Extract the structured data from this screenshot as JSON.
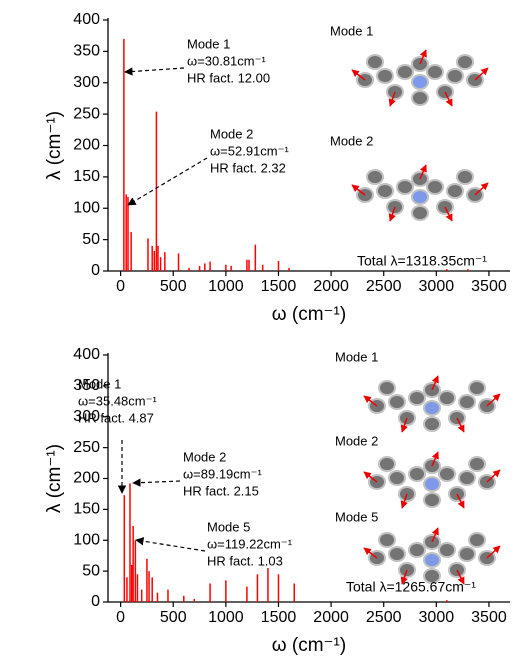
{
  "chart_data": [
    {
      "type": "stick",
      "color": "#ff0000",
      "x_label": "ω (cm⁻¹)",
      "y_label": "λ (cm⁻¹)",
      "x": [
        31,
        53,
        70,
        100,
        260,
        300,
        320,
        340,
        355,
        380,
        420,
        550,
        650,
        750,
        800,
        850,
        1000,
        1050,
        1200,
        1220,
        1280,
        1350,
        1500,
        1600,
        3100,
        3300
      ],
      "values": [
        370,
        122,
        118,
        62,
        52,
        40,
        32,
        254,
        40,
        22,
        30,
        28,
        5,
        8,
        12,
        15,
        10,
        8,
        18,
        18,
        42,
        10,
        16,
        5,
        3,
        3
      ],
      "xlim": [
        -120,
        3700
      ],
      "xticks": [
        0,
        500,
        1000,
        1500,
        2000,
        2500,
        3000,
        3500
      ],
      "ylim": [
        0,
        400
      ],
      "yticks": [
        0,
        50,
        100,
        150,
        200,
        250,
        300,
        350,
        400
      ],
      "annotations": [
        [
          "Mode 1",
          "ω=30.81cm⁻¹",
          "HR fact. 12.00"
        ],
        [
          "Mode 2",
          "ω=52.91cm⁻¹",
          "HR fact. 2.32"
        ]
      ],
      "total": "Total λ=1318.35cm⁻¹",
      "insets": [
        "Mode 1",
        "Mode 2"
      ]
    },
    {
      "type": "stick",
      "color": "#ff0000",
      "x_label": "ω (cm⁻¹)",
      "y_label": "λ (cm⁻¹)",
      "x": [
        35,
        60,
        89,
        105,
        119,
        140,
        160,
        200,
        250,
        270,
        300,
        350,
        450,
        600,
        700,
        850,
        1000,
        1200,
        1300,
        1400,
        1500,
        1650,
        3100
      ],
      "values": [
        173,
        40,
        192,
        60,
        123,
        100,
        45,
        20,
        70,
        50,
        40,
        15,
        20,
        10,
        5,
        30,
        35,
        25,
        45,
        55,
        45,
        30,
        3
      ],
      "xlim": [
        -120,
        3700
      ],
      "xticks": [
        0,
        500,
        1000,
        1500,
        2000,
        2500,
        3000,
        3500
      ],
      "ylim": [
        0,
        400
      ],
      "yticks": [
        0,
        50,
        100,
        150,
        200,
        250,
        300,
        350,
        400
      ],
      "annotations": [
        [
          "Mode 1",
          "ω=35.48cm⁻¹",
          "HR fact. 4.87"
        ],
        [
          "Mode 2",
          "ω=89.19cm⁻¹",
          "HR fact. 2.15"
        ],
        [
          "Mode 5",
          "ω=119.22cm⁻¹",
          "HR fact. 1.03"
        ]
      ],
      "total": "Total λ=1265.67cm⁻¹",
      "insets": [
        "Mode 1",
        "Mode 2",
        "Mode 5"
      ]
    }
  ]
}
